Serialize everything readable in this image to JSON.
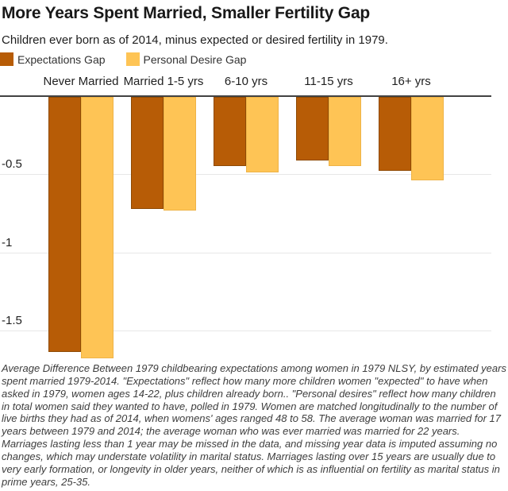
{
  "header": {
    "title": "More Years Spent Married, Smaller Fertility Gap",
    "subtitle": "Children ever born as of 2014, minus expected or desired fertility in 1979."
  },
  "legend": {
    "items": [
      {
        "label": "Expectations Gap",
        "color": "#b75c06",
        "stroke": "#8f4a04"
      },
      {
        "label": "Personal Desire Gap",
        "color": "#fec455",
        "stroke": "#eeb347"
      }
    ]
  },
  "chart_data": {
    "type": "bar",
    "title": "More Years Spent Married, Smaller Fertility Gap",
    "subtitle": "Children ever born as of 2014, minus expected or desired fertility in 1979.",
    "categories": [
      "Never Married",
      "Married 1-5 yrs",
      "6-10 yrs",
      "11-15 yrs",
      "16+ yrs"
    ],
    "series": [
      {
        "name": "Expectations Gap",
        "color": "#b75c06",
        "stroke": "#8f4a04",
        "values": [
          -1.64,
          -0.72,
          -0.45,
          -0.41,
          -0.48
        ]
      },
      {
        "name": "Personal Desire Gap",
        "color": "#fec455",
        "stroke": "#eeb347",
        "values": [
          -1.68,
          -0.73,
          -0.49,
          -0.45,
          -0.54
        ]
      }
    ],
    "xlabel": "",
    "ylabel": "",
    "ylim": [
      -1.75,
      0
    ],
    "y_ticks": [
      {
        "label": "-0.5",
        "value": -0.5
      },
      {
        "label": "-1",
        "value": -1
      },
      {
        "label": "-1.5",
        "value": -1.5
      }
    ],
    "grid": true,
    "legend_position": "top-left",
    "colors": {
      "zero_line": "#424242",
      "gridline": "#e7e7e7"
    }
  },
  "footnote": {
    "text": "Average Difference Between 1979 childbearing expectations among women in 1979 NLSY, by estimated years spent married 1979-2014. \"Expectations\" reflect how many more children women \"expected\" to have when asked in 1979, women ages 14-22, plus children already born.. \"Personal desires\" reflect how many children in total women said they wanted to have, polled in 1979. Women are matched longitudinally to the number of live births they had as of 2014, when womens' ages ranged 48 to 58. The average woman was married for 17 years between 1979 and 2014; the average woman who was ever married was married for 22 years. Marriages lasting less than 1 year may be missed in the data, and missing year data is imputed assuming no changes, which may understate volatility in marital status. Marriages lasting over 15 years are usually due to very early formation, or longevity in older years, neither of which is as influential on fertility as marital status in prime years, 25-35."
  }
}
